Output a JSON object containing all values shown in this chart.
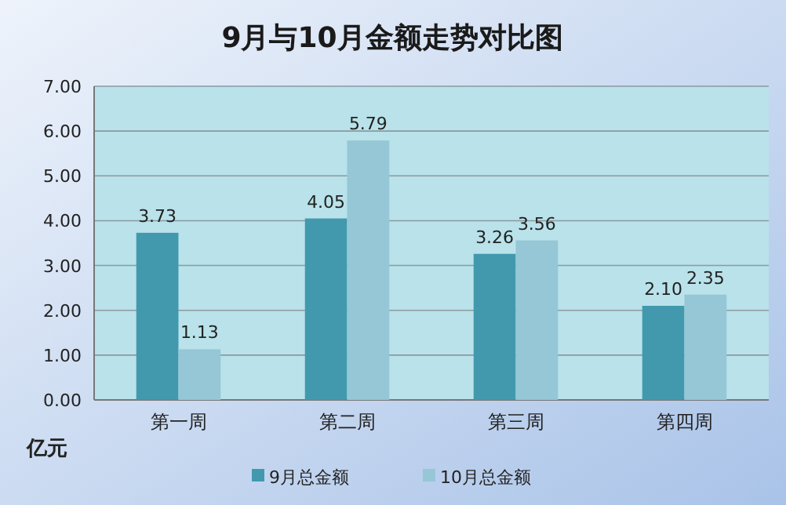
{
  "chart_data": {
    "type": "bar",
    "title": "9月与10月金额走势对比图",
    "ylabel": "亿元",
    "categories": [
      "第一周",
      "第二周",
      "第三周",
      "第四周"
    ],
    "series": [
      {
        "name": "9月总金额",
        "color": "#4299ad",
        "values": [
          3.73,
          4.05,
          3.26,
          2.1
        ],
        "value_labels": [
          "3.73",
          "4.05",
          "3.26",
          "2.10"
        ]
      },
      {
        "name": "10月总金额",
        "color": "#95c7d6",
        "values": [
          1.13,
          5.79,
          3.56,
          2.35
        ],
        "value_labels": [
          "1.13",
          "5.79",
          "3.56",
          "2.35"
        ]
      }
    ],
    "ylim": [
      0,
      7
    ],
    "yticks": [
      {
        "value": 0,
        "label": "0.00"
      },
      {
        "value": 1,
        "label": "1.00"
      },
      {
        "value": 2,
        "label": "2.00"
      },
      {
        "value": 3,
        "label": "3.00"
      },
      {
        "value": 4,
        "label": "4.00"
      },
      {
        "value": 5,
        "label": "5.00"
      },
      {
        "value": 6,
        "label": "6.00"
      },
      {
        "value": 7,
        "label": "7.00"
      }
    ],
    "grid": "y",
    "legend": "bottom"
  }
}
